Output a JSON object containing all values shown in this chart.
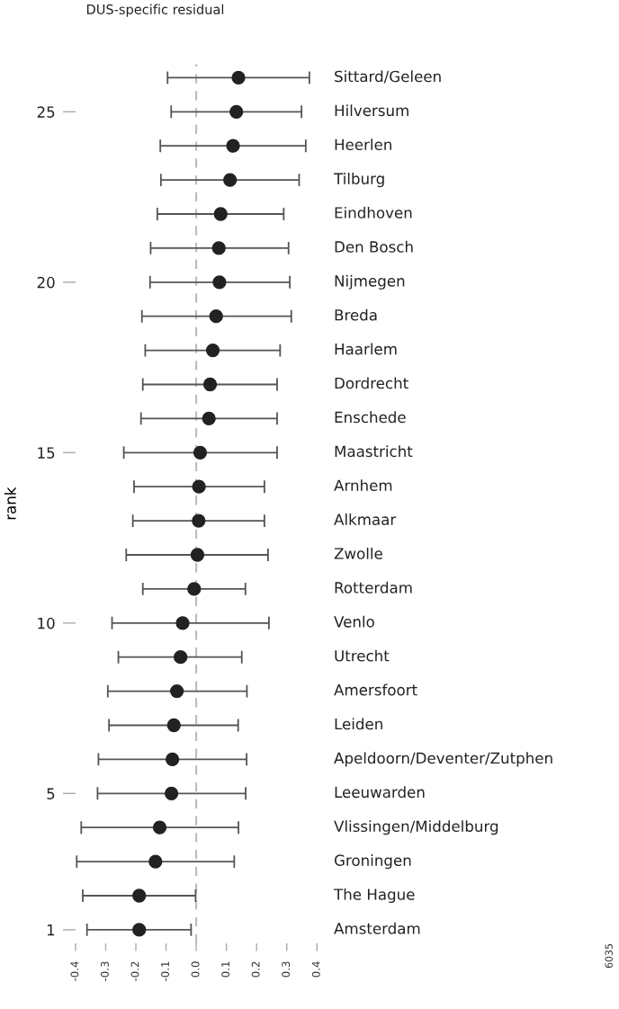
{
  "chart_data": {
    "type": "scatter",
    "title": "DUS-specific residual",
    "ylabel": "rank",
    "x": [
      0.14,
      0.133,
      0.122,
      0.112,
      0.081,
      0.075,
      0.077,
      0.066,
      0.055,
      0.046,
      0.042,
      0.013,
      0.009,
      0.008,
      0.004,
      -0.007,
      -0.045,
      -0.052,
      -0.064,
      -0.074,
      -0.079,
      -0.082,
      -0.121,
      -0.135,
      -0.189,
      -0.189
    ],
    "values": [
      26,
      25,
      24,
      23,
      22,
      21,
      20,
      19,
      18,
      17,
      16,
      15,
      14,
      13,
      12,
      11,
      10,
      9,
      8,
      7,
      6,
      5,
      4,
      3,
      2,
      1
    ],
    "xerrors": [
      [
        -0.095,
        0.375
      ],
      [
        -0.083,
        0.349
      ],
      [
        -0.119,
        0.363
      ],
      [
        -0.117,
        0.341
      ],
      [
        -0.129,
        0.29
      ],
      [
        -0.151,
        0.306
      ],
      [
        -0.153,
        0.31
      ],
      [
        -0.18,
        0.315
      ],
      [
        -0.169,
        0.278
      ],
      [
        -0.177,
        0.268
      ],
      [
        -0.183,
        0.268
      ],
      [
        -0.24,
        0.268
      ],
      [
        -0.206,
        0.226
      ],
      [
        -0.21,
        0.226
      ],
      [
        -0.232,
        0.238
      ],
      [
        -0.177,
        0.163
      ],
      [
        -0.279,
        0.241
      ],
      [
        -0.258,
        0.151
      ],
      [
        -0.293,
        0.168
      ],
      [
        -0.289,
        0.139
      ],
      [
        -0.324,
        0.167
      ],
      [
        -0.327,
        0.164
      ],
      [
        -0.381,
        0.14
      ],
      [
        -0.396,
        0.126
      ],
      [
        -0.376,
        -0.002
      ],
      [
        -0.362,
        -0.017
      ]
    ],
    "color": "#222222",
    "marker": "circle",
    "xlim": [
      -0.4,
      0.4
    ],
    "xticks": [
      -0.4,
      -0.3,
      -0.2,
      -0.1,
      {
        "value": 0,
        "label": "0.0"
      },
      0.1,
      0.2,
      0.3,
      0.4
    ],
    "ylim": [
      0.6,
      26.4
    ],
    "yticks": [
      1,
      5,
      10,
      15,
      20,
      25
    ],
    "ref_lines": [
      {
        "axis": "x",
        "value": 0,
        "color": "#bbbbbb",
        "line_style": "dashed"
      }
    ],
    "grid": false,
    "legend": false,
    "annotations": [
      "Sittard/Geleen",
      "Hilversum",
      "Heerlen",
      "Tilburg",
      "Eindhoven",
      "Den Bosch",
      "Nijmegen",
      "Breda",
      "Haarlem",
      "Dordrecht",
      "Enschede",
      "Maastricht",
      "Arnhem",
      "Alkmaar",
      "Zwolle",
      "Rotterdam",
      "Venlo",
      "Utrecht",
      "Amersfoort",
      "Leiden",
      "Apeldoorn/Deventer/Zutphen",
      "Leeuwarden",
      "Vlissingen/Middelburg",
      "Groningen",
      "The Hague",
      "Amsterdam",
      "6035"
    ]
  }
}
